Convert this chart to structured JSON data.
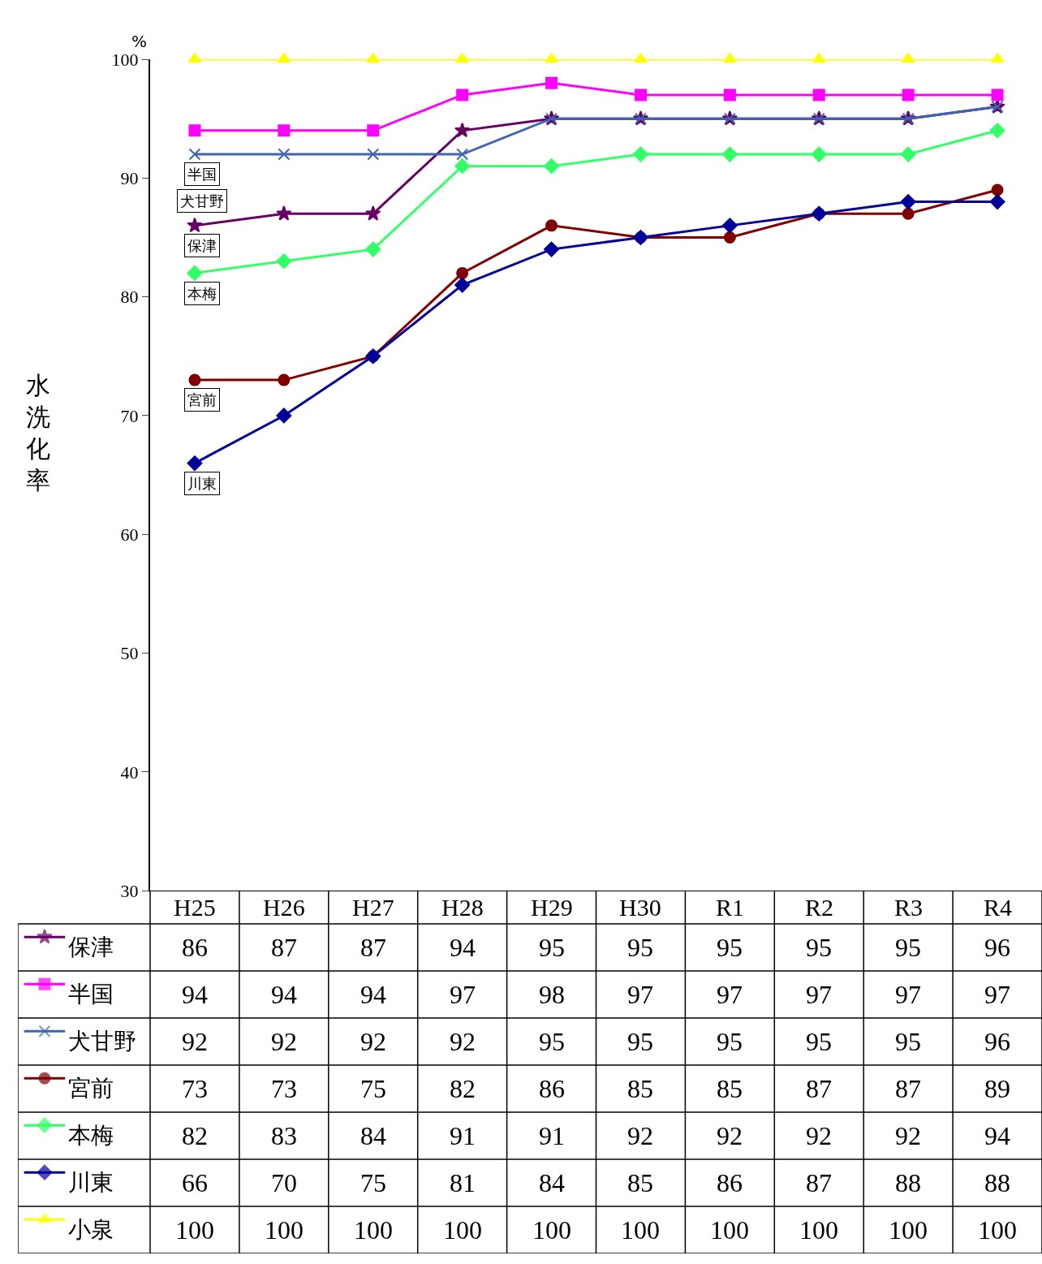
{
  "chart_data": {
    "type": "line",
    "ylabel": "水洗化率",
    "annotations": [
      "%"
    ],
    "categories": [
      "H25",
      "H26",
      "H27",
      "H28",
      "H29",
      "H30",
      "R1",
      "R2",
      "R3",
      "R4"
    ],
    "ylim": [
      30,
      100
    ],
    "yticks": [
      30,
      40,
      50,
      60,
      70,
      80,
      90,
      100
    ],
    "data_labels": true,
    "legend": "bottom left",
    "series": [
      {
        "name": "保津",
        "color": "#660066",
        "marker": "star",
        "values": [
          86,
          87,
          87,
          94,
          95,
          95,
          95,
          95,
          95,
          96
        ]
      },
      {
        "name": "半国",
        "color": "#ff00ff",
        "marker": "square",
        "values": [
          94,
          94,
          94,
          97,
          98,
          97,
          97,
          97,
          97,
          97
        ]
      },
      {
        "name": "犬甘野",
        "color": "#3f64b0",
        "marker": "cross",
        "values": [
          92,
          92,
          92,
          92,
          95,
          95,
          95,
          95,
          95,
          96
        ]
      },
      {
        "name": "宮前",
        "color": "#800000",
        "marker": "circle",
        "values": [
          73,
          73,
          75,
          82,
          86,
          85,
          85,
          87,
          87,
          89
        ]
      },
      {
        "name": "本梅",
        "color": "#33ff66",
        "marker": "diamond",
        "values": [
          82,
          83,
          84,
          91,
          91,
          92,
          92,
          92,
          92,
          94
        ]
      },
      {
        "name": "川東",
        "color": "#000099",
        "marker": "diamond",
        "values": [
          66,
          70,
          75,
          81,
          84,
          85,
          86,
          87,
          88,
          88
        ]
      },
      {
        "name": "小泉",
        "color": "#ffff00",
        "marker": "triangle",
        "values": [
          100,
          100,
          100,
          100,
          100,
          100,
          100,
          100,
          100,
          100
        ]
      }
    ]
  }
}
